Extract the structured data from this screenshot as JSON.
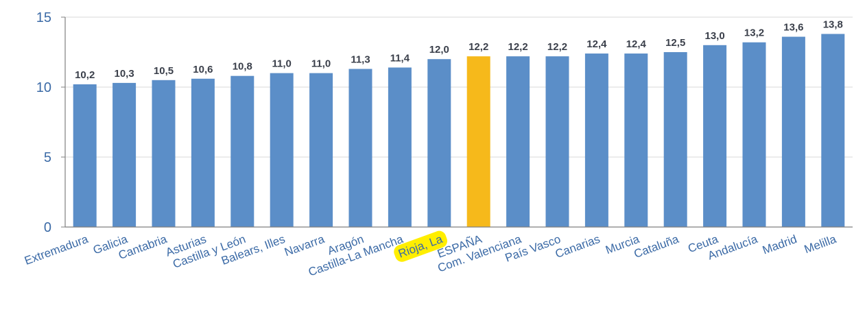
{
  "chart_data": {
    "type": "bar",
    "title": "",
    "xlabel": "",
    "ylabel": "",
    "ylim": [
      0,
      15
    ],
    "yticks": [
      0,
      5,
      10,
      15
    ],
    "grid": true,
    "categories": [
      "Extremadura",
      "Galicia",
      "Cantabria",
      "Asturias",
      "Castilla y León",
      "Balears, Illes",
      "Navarra",
      "Aragón",
      "Castilla-La Mancha",
      "Rioja, La",
      "ESPAÑA",
      "Com. Valenciana",
      "País Vasco",
      "Canarias",
      "Murcia",
      "Cataluña",
      "Ceuta",
      "Andalucía",
      "Madrid",
      "Melilla"
    ],
    "values": [
      10.2,
      10.3,
      10.5,
      10.6,
      10.8,
      11.0,
      11.0,
      11.3,
      11.4,
      12.0,
      12.2,
      12.2,
      12.2,
      12.4,
      12.4,
      12.5,
      13.0,
      13.2,
      13.6,
      13.8
    ],
    "data_labels": [
      "10,2",
      "10,3",
      "10,5",
      "10,6",
      "10,8",
      "11,0",
      "11,0",
      "11,3",
      "11,4",
      "12,0",
      "12,2",
      "12,2",
      "12,2",
      "12,4",
      "12,4",
      "12,5",
      "13,0",
      "13,2",
      "13,6",
      "13,8"
    ],
    "highlighted_bar": "ESPAÑA",
    "highlighted_label": "Rioja, La",
    "colors": {
      "bar": "#5b8ec8",
      "highlight_bar": "#f6b91b",
      "label_highlight": "#ffee00",
      "axis_text": "#3b6aa6",
      "data_label": "#3a3f4a",
      "grid": "#d9d9d9",
      "axis": "#7f7f7f"
    }
  }
}
